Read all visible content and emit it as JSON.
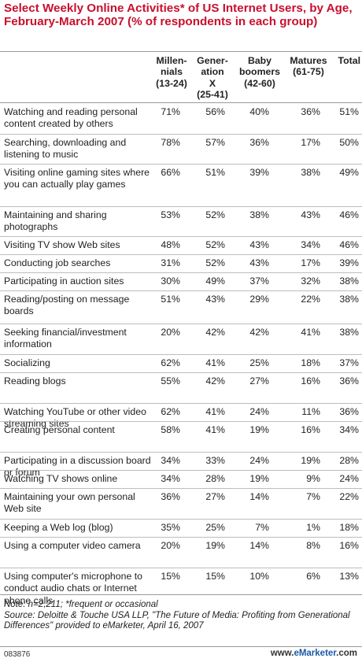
{
  "title": "Select Weekly Online Activities* of US Internet Users, by Age, February-March 2007 (% of respondents in each group)",
  "columns": [
    "Millen-\nnials\n(13-24)",
    "Gener-\nation\nX\n(25-41)",
    "Baby\nboomers\n(42-60)",
    "Matures\n(61-75)",
    "Total"
  ],
  "chart_data": {
    "type": "table",
    "title": "Select Weekly Online Activities* of US Internet Users, by Age, February-March 2007 (% of respondents in each group)",
    "columns": [
      "Millennials (13-24)",
      "Generation X (25-41)",
      "Baby boomers (42-60)",
      "Matures (61-75)",
      "Total"
    ],
    "rows": [
      {
        "label": "Watching and reading personal content created by others",
        "values": [
          "71%",
          "56%",
          "40%",
          "36%",
          "51%"
        ]
      },
      {
        "label": "Searching, downloading and listening to music",
        "values": [
          "78%",
          "57%",
          "36%",
          "17%",
          "50%"
        ]
      },
      {
        "label": "Visiting online gaming sites where you can actually play games",
        "values": [
          "66%",
          "51%",
          "39%",
          "38%",
          "49%"
        ]
      },
      {
        "label": "Maintaining and sharing photographs",
        "values": [
          "53%",
          "52%",
          "38%",
          "43%",
          "46%"
        ]
      },
      {
        "label": "Visiting TV show Web sites",
        "values": [
          "48%",
          "52%",
          "43%",
          "34%",
          "46%"
        ]
      },
      {
        "label": "Conducting job searches",
        "values": [
          "31%",
          "52%",
          "43%",
          "17%",
          "39%"
        ]
      },
      {
        "label": "Participating in auction sites",
        "values": [
          "30%",
          "49%",
          "37%",
          "32%",
          "38%"
        ]
      },
      {
        "label": "Reading/posting on message boards",
        "values": [
          "51%",
          "43%",
          "29%",
          "22%",
          "38%"
        ]
      },
      {
        "label": "Seeking financial/investment information",
        "values": [
          "20%",
          "42%",
          "42%",
          "41%",
          "38%"
        ]
      },
      {
        "label": "Socializing",
        "values": [
          "62%",
          "41%",
          "25%",
          "18%",
          "37%"
        ]
      },
      {
        "label": "Reading blogs",
        "values": [
          "55%",
          "42%",
          "27%",
          "16%",
          "36%"
        ]
      },
      {
        "label": "Watching YouTube or other video streaming sites",
        "values": [
          "62%",
          "41%",
          "24%",
          "11%",
          "36%"
        ]
      },
      {
        "label": "Creating personal content",
        "values": [
          "58%",
          "41%",
          "19%",
          "16%",
          "34%"
        ]
      },
      {
        "label": "Participating in a discussion board or forum",
        "values": [
          "34%",
          "33%",
          "24%",
          "19%",
          "28%"
        ]
      },
      {
        "label": "Watching TV shows online",
        "values": [
          "34%",
          "28%",
          "19%",
          "9%",
          "24%"
        ]
      },
      {
        "label": "Maintaining your own personal Web site",
        "values": [
          "36%",
          "27%",
          "14%",
          "7%",
          "22%"
        ]
      },
      {
        "label": "Keeping a Web log (blog)",
        "values": [
          "35%",
          "25%",
          "7%",
          "1%",
          "18%"
        ]
      },
      {
        "label": "Using a computer video camera",
        "values": [
          "20%",
          "19%",
          "14%",
          "8%",
          "16%"
        ]
      },
      {
        "label": "Using computer's microphone to conduct audio chats or Internet phone calls",
        "values": [
          "15%",
          "15%",
          "10%",
          "6%",
          "13%"
        ]
      }
    ]
  },
  "note": "Note: n=2,211; *frequent or occasional\nSource: Deloitte & Touche USA LLP, \"The Future of Media: Profiting from Generational Differences\" provided to eMarketer, April 16, 2007",
  "footer": {
    "id": "083876",
    "source_brand": "eMarketer",
    "source_suffix": ".com",
    "source_prefix": "www."
  },
  "colors": {
    "title": "#c8102e",
    "rule": "#9a9a9a",
    "brand": "#1a5aa6"
  }
}
